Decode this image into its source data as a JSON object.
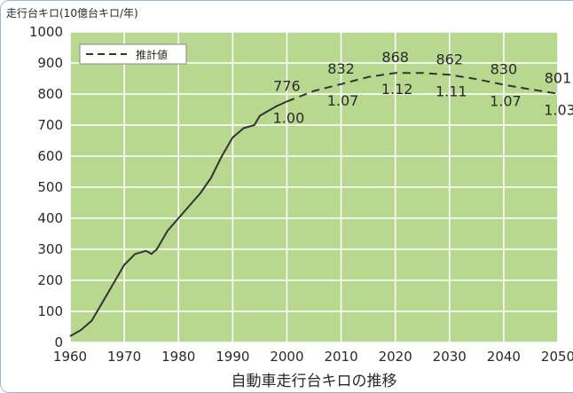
{
  "chart_data": {
    "type": "line",
    "title": "",
    "caption": "自動車走行台キロの推移",
    "ylabel": "走行台キロ(10億台キロ/年)",
    "xlabel": "",
    "xlim": [
      1960,
      2050
    ],
    "ylim": [
      0,
      1000
    ],
    "x_ticks": [
      "1960",
      "1970",
      "1980",
      "1990",
      "2000",
      "2010",
      "2020",
      "2030",
      "2040",
      "2050"
    ],
    "y_ticks": [
      "0",
      "100",
      "200",
      "300",
      "400",
      "500",
      "600",
      "700",
      "800",
      "900",
      "1000"
    ],
    "grid": true,
    "legend_position": "top-left",
    "series": [
      {
        "name": "",
        "style": "solid",
        "x": [
          1960,
          1962,
          1964,
          1966,
          1968,
          1970,
          1972,
          1974,
          1975,
          1976,
          1977,
          1978,
          1980,
          1982,
          1984,
          1986,
          1988,
          1990,
          1992,
          1994,
          1995,
          1996,
          1998,
          2000
        ],
        "y": [
          20,
          40,
          70,
          130,
          190,
          250,
          285,
          295,
          285,
          300,
          330,
          360,
          400,
          440,
          480,
          530,
          600,
          660,
          690,
          700,
          730,
          740,
          760,
          776
        ]
      },
      {
        "name": "推計値",
        "style": "dashed",
        "x": [
          2000,
          2005,
          2010,
          2015,
          2020,
          2025,
          2030,
          2035,
          2040,
          2045,
          2050
        ],
        "y": [
          776,
          810,
          832,
          855,
          868,
          868,
          862,
          848,
          830,
          815,
          801
        ]
      }
    ],
    "point_labels": [
      {
        "x": 2000,
        "y": 776,
        "value": "776",
        "ratio": "1.00"
      },
      {
        "x": 2010,
        "y": 832,
        "value": "832",
        "ratio": "1.07"
      },
      {
        "x": 2020,
        "y": 868,
        "value": "868",
        "ratio": "1.12"
      },
      {
        "x": 2030,
        "y": 862,
        "value": "862",
        "ratio": "1.11"
      },
      {
        "x": 2040,
        "y": 830,
        "value": "830",
        "ratio": "1.07"
      },
      {
        "x": 2050,
        "y": 801,
        "value": "801",
        "ratio": "1.03"
      }
    ],
    "colors": {
      "plot_bg": "#b8d890",
      "grid": "#ffffff",
      "line": "#333333",
      "frame": "#9fb7c9"
    }
  }
}
